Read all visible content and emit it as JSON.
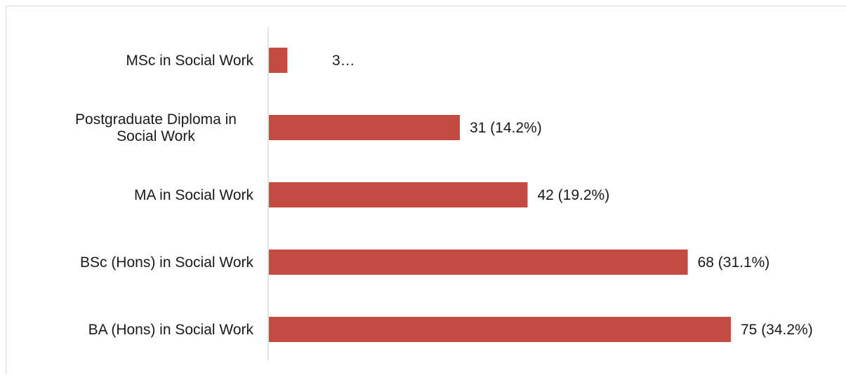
{
  "chart_data": {
    "type": "bar",
    "orientation": "horizontal",
    "categories": [
      "MSc in Social Work",
      "Postgraduate Diploma in Social Work",
      "MA in Social Work",
      "BSc (Hons) in Social Work",
      "BA (Hons) in Social Work"
    ],
    "category_lines": [
      [
        "MSc in Social Work"
      ],
      [
        "Postgraduate Diploma in",
        "Social Work"
      ],
      [
        "MA in Social Work"
      ],
      [
        "BSc (Hons) in Social Work"
      ],
      [
        "BA (Hons) in Social Work"
      ]
    ],
    "values": [
      3,
      31,
      42,
      68,
      75
    ],
    "data_labels": [
      "3…",
      "31 (14.2%)",
      "42 (19.2%)",
      "68 (31.1%)",
      "75 (34.2%)"
    ],
    "title": "",
    "xlabel": "",
    "ylabel": "",
    "xlim": [
      0,
      75
    ],
    "grid": false,
    "legend": "none",
    "colors": {
      "bar": "#c44b41",
      "axis": "#d9d9d9",
      "text": "#1a1a1a"
    }
  }
}
